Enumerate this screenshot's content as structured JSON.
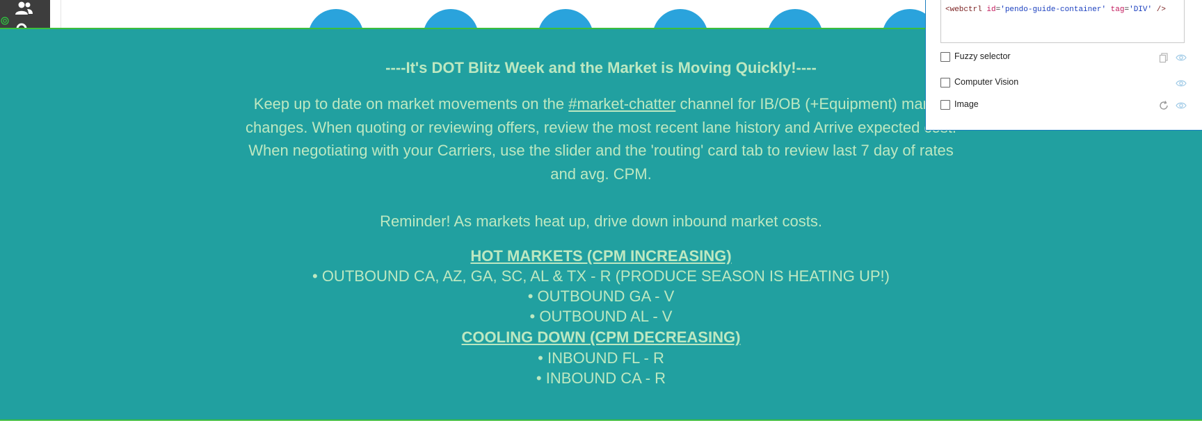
{
  "guide": {
    "headline": "----It's DOT Blitz Week and the Market is Moving Quickly!----",
    "para_pre": "Keep up to date on market movements on the ",
    "para_link": "#market-chatter",
    "para_post": " channel for IB/OB (+Equipment) market changes.  When quoting or reviewing offers, review the most recent lane history and Arrive expected cost. When negotiating with your Carriers, use the slider and the 'routing' card tab to review last 7 day of rates and avg. CPM.",
    "reminder": "Reminder! As markets heat up, drive down inbound market costs.",
    "hot_title": "HOT MARKETS (CPM INCREASING)",
    "hot_items": [
      "• OUTBOUND CA, AZ, GA, SC, AL & TX - R (PRODUCE SEASON IS HEATING UP!)",
      "• OUTBOUND GA - V",
      "• OUTBOUND AL - V"
    ],
    "cool_title": "COOLING DOWN (CPM DECREASING)",
    "cool_items": [
      "• INBOUND FL - R",
      "• INBOUND CA - R"
    ],
    "text_color": "#bde8c1",
    "background_color": "#21a0a0"
  },
  "selector_panel": {
    "code": {
      "open": "<webctrl",
      "id_attr": "id",
      "id_val": "'pendo-guide-container'",
      "tag_attr": "tag",
      "tag_val": "'DIV'",
      "close": "/>"
    },
    "options": [
      {
        "label": "Fuzzy selector",
        "checked": false,
        "icons": [
          "copy-icon",
          "eye-icon"
        ]
      },
      {
        "label": "Computer Vision",
        "checked": false,
        "icons": [
          "eye-icon"
        ]
      },
      {
        "label": "Image",
        "checked": false,
        "icons": [
          "refresh-icon",
          "eye-icon"
        ]
      }
    ]
  },
  "app_background": {
    "icons": [
      "users-icon",
      "target-icon"
    ],
    "accent": "#2aa3dc"
  }
}
